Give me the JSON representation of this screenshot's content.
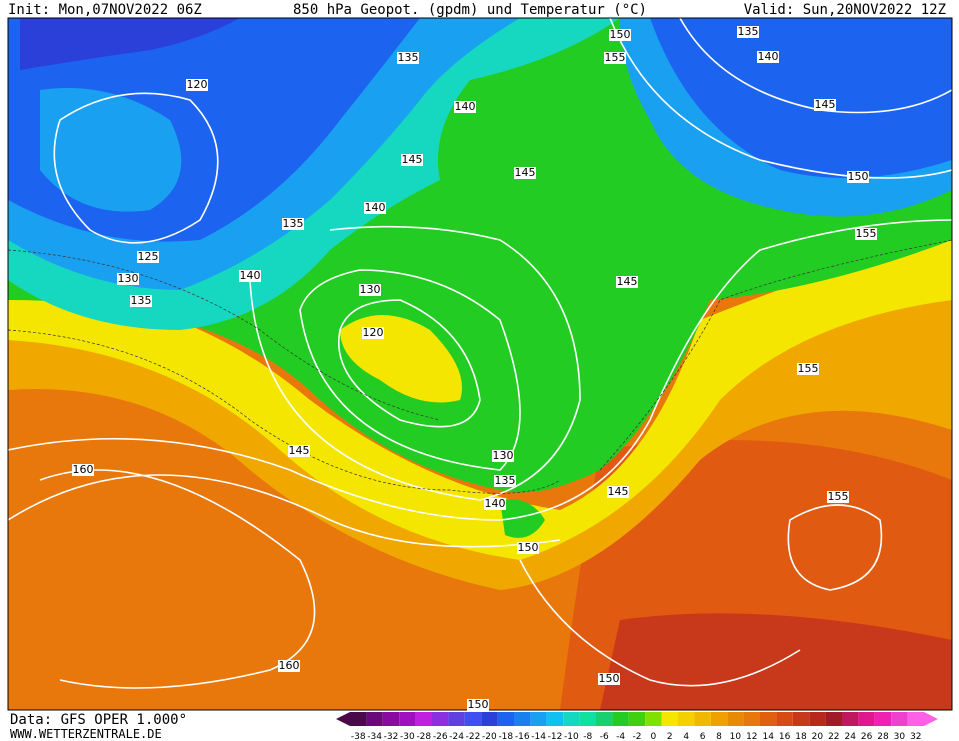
{
  "header": {
    "init": "Init: Mon,07NOV2022 06Z",
    "title": "850 hPa Geopot. (gpdm) und Temperatur (°C)",
    "valid": "Valid: Sun,20NOV2022 12Z"
  },
  "footer": {
    "data": "Data: GFS OPER 1.000°",
    "site": "WWW.WETTERZENTRALE.DE"
  },
  "contour_labels": [
    150,
    135,
    135,
    155,
    140,
    120,
    140,
    145,
    145,
    145,
    150,
    140,
    135,
    155,
    125,
    140,
    130,
    145,
    130,
    135,
    120,
    155,
    145,
    130,
    160,
    135,
    145,
    155,
    140,
    150,
    160,
    150,
    150
  ],
  "colorbar": {
    "labels": [
      -38,
      -34,
      -32,
      -30,
      -28,
      -26,
      -24,
      -22,
      -20,
      -18,
      -16,
      -14,
      -12,
      -10,
      -8,
      -6,
      -4,
      -2,
      0,
      2,
      4,
      6,
      8,
      10,
      12,
      14,
      16,
      18,
      20,
      22,
      24,
      26,
      28,
      30,
      32
    ]
  }
}
